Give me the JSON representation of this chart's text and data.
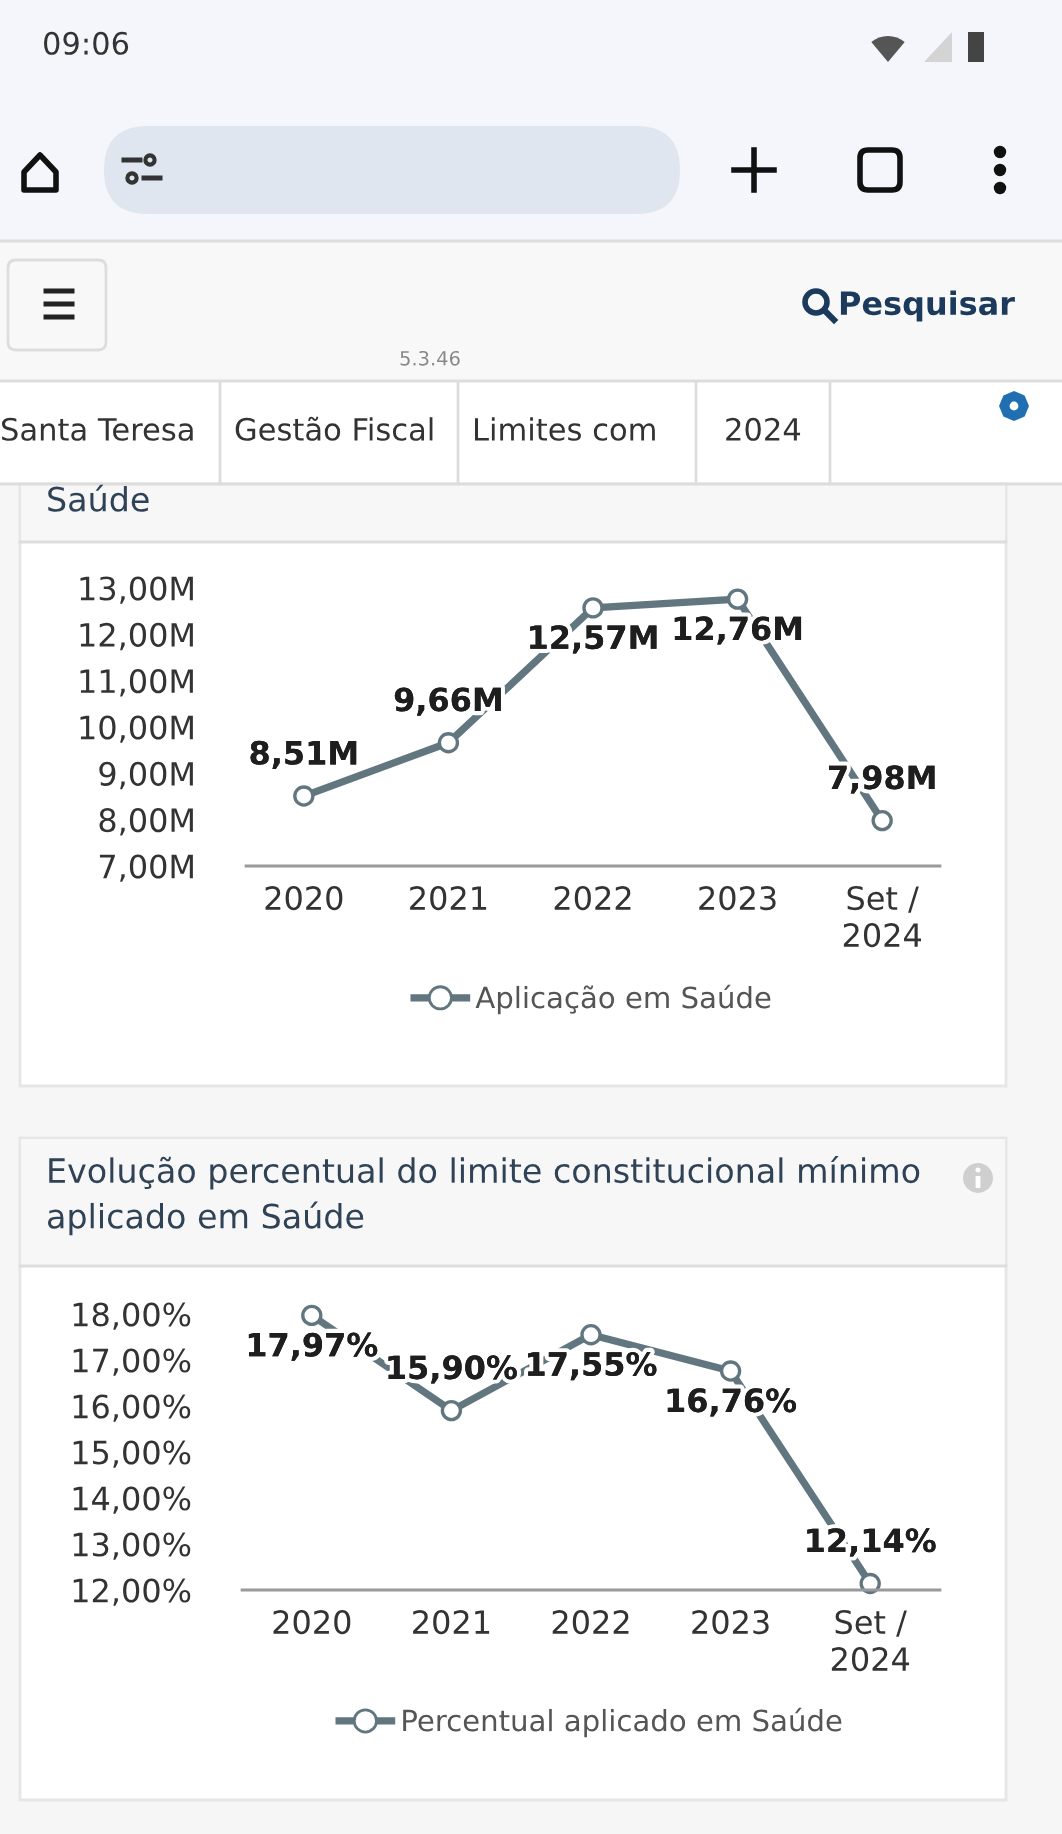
{
  "chart_data": [
    {
      "type": "line",
      "title": "Saúde",
      "categories": [
        "2020",
        "2021",
        "2022",
        "2023",
        "Set / 2024"
      ],
      "series": [
        {
          "name": "Aplicação em Saúde",
          "color": "#61767f",
          "values": [
            8.51,
            9.66,
            12.57,
            12.76,
            7.98
          ],
          "value_labels": [
            "8,51M",
            "9,66M",
            "12,57M",
            "12,76M",
            "7,98M"
          ]
        }
      ],
      "ylim": [
        7,
        13
      ],
      "yticks": [
        {
          "value": 7,
          "label": "7,00M"
        },
        {
          "value": 8,
          "label": "8,00M"
        },
        {
          "value": 9,
          "label": "9,00M"
        },
        {
          "value": 10,
          "label": "10,00M"
        },
        {
          "value": 11,
          "label": "11,00M"
        },
        {
          "value": 12,
          "label": "12,00M"
        },
        {
          "value": 13,
          "label": "13,00M"
        }
      ],
      "marker": "circle",
      "line_style": "solid",
      "legend": "bottom",
      "annotations": [
        "09:06",
        "5.3.46",
        "Pesquisar",
        "Santa Teresa",
        "Gestão Fiscal",
        "Limites com",
        "2024"
      ]
    },
    {
      "type": "line",
      "title": "Evolução percentual do limite constitucional mínimo aplicado em Saúde",
      "categories": [
        "2020",
        "2021",
        "2022",
        "2023",
        "Set / 2024"
      ],
      "series": [
        {
          "name": "Percentual aplicado em Saúde",
          "color": "#61767f",
          "values": [
            17.97,
            15.9,
            17.55,
            16.76,
            12.14
          ],
          "value_labels": [
            "17,97%",
            "15,90%",
            "17,55%",
            "16,76%",
            "12,14%"
          ]
        }
      ],
      "ylim": [
        12,
        18
      ],
      "yticks": [
        {
          "value": 12,
          "label": "12,00%"
        },
        {
          "value": 13,
          "label": "13,00%"
        },
        {
          "value": 14,
          "label": "14,00%"
        },
        {
          "value": 15,
          "label": "15,00%"
        },
        {
          "value": 16,
          "label": "16,00%"
        },
        {
          "value": 17,
          "label": "17,00%"
        },
        {
          "value": 18,
          "label": "18,00%"
        }
      ],
      "marker": "circle",
      "line_style": "solid",
      "legend": "bottom"
    }
  ]
}
